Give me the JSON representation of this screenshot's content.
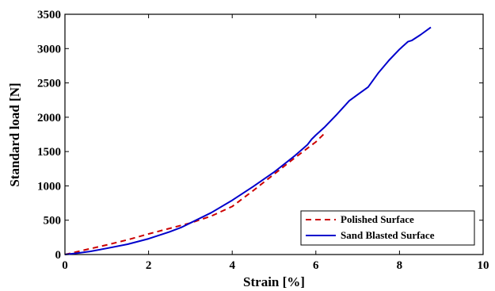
{
  "chart_data": {
    "type": "line",
    "title": "",
    "xlabel": "Strain [%]",
    "ylabel": "Standard load [N]",
    "xlim": [
      0,
      10
    ],
    "ylim": [
      0,
      3500
    ],
    "xticks": [
      0,
      2,
      4,
      6,
      8,
      10
    ],
    "yticks": [
      0,
      500,
      1000,
      1500,
      2000,
      2500,
      3000,
      3500
    ],
    "grid": false,
    "legend_position": "bottom-right",
    "series": [
      {
        "name": "Polished Surface",
        "color": "#cc0000",
        "style": "dashed",
        "x": [
          0,
          0.5,
          1.0,
          1.5,
          2.0,
          2.5,
          3.0,
          3.5,
          4.0,
          4.5,
          5.0,
          5.5,
          6.0,
          6.25
        ],
        "y": [
          0,
          70,
          140,
          215,
          300,
          380,
          460,
          560,
          700,
          930,
          1170,
          1410,
          1640,
          1790
        ]
      },
      {
        "name": "Sand Blasted Surface",
        "color": "#0000cc",
        "style": "solid",
        "x": [
          0,
          0.3,
          0.6,
          1.0,
          1.5,
          2.0,
          2.5,
          2.8,
          3.0,
          3.5,
          4.0,
          4.5,
          5.0,
          5.5,
          5.8,
          5.9,
          6.0,
          6.2,
          6.5,
          6.8,
          7.0,
          7.25,
          7.5,
          7.75,
          8.0,
          8.2,
          8.3,
          8.5,
          8.75
        ],
        "y": [
          0,
          20,
          45,
          90,
          150,
          230,
          330,
          400,
          460,
          610,
          790,
          990,
          1200,
          1440,
          1600,
          1680,
          1740,
          1850,
          2040,
          2240,
          2330,
          2440,
          2650,
          2830,
          2990,
          3100,
          3120,
          3200,
          3310
        ]
      }
    ]
  }
}
